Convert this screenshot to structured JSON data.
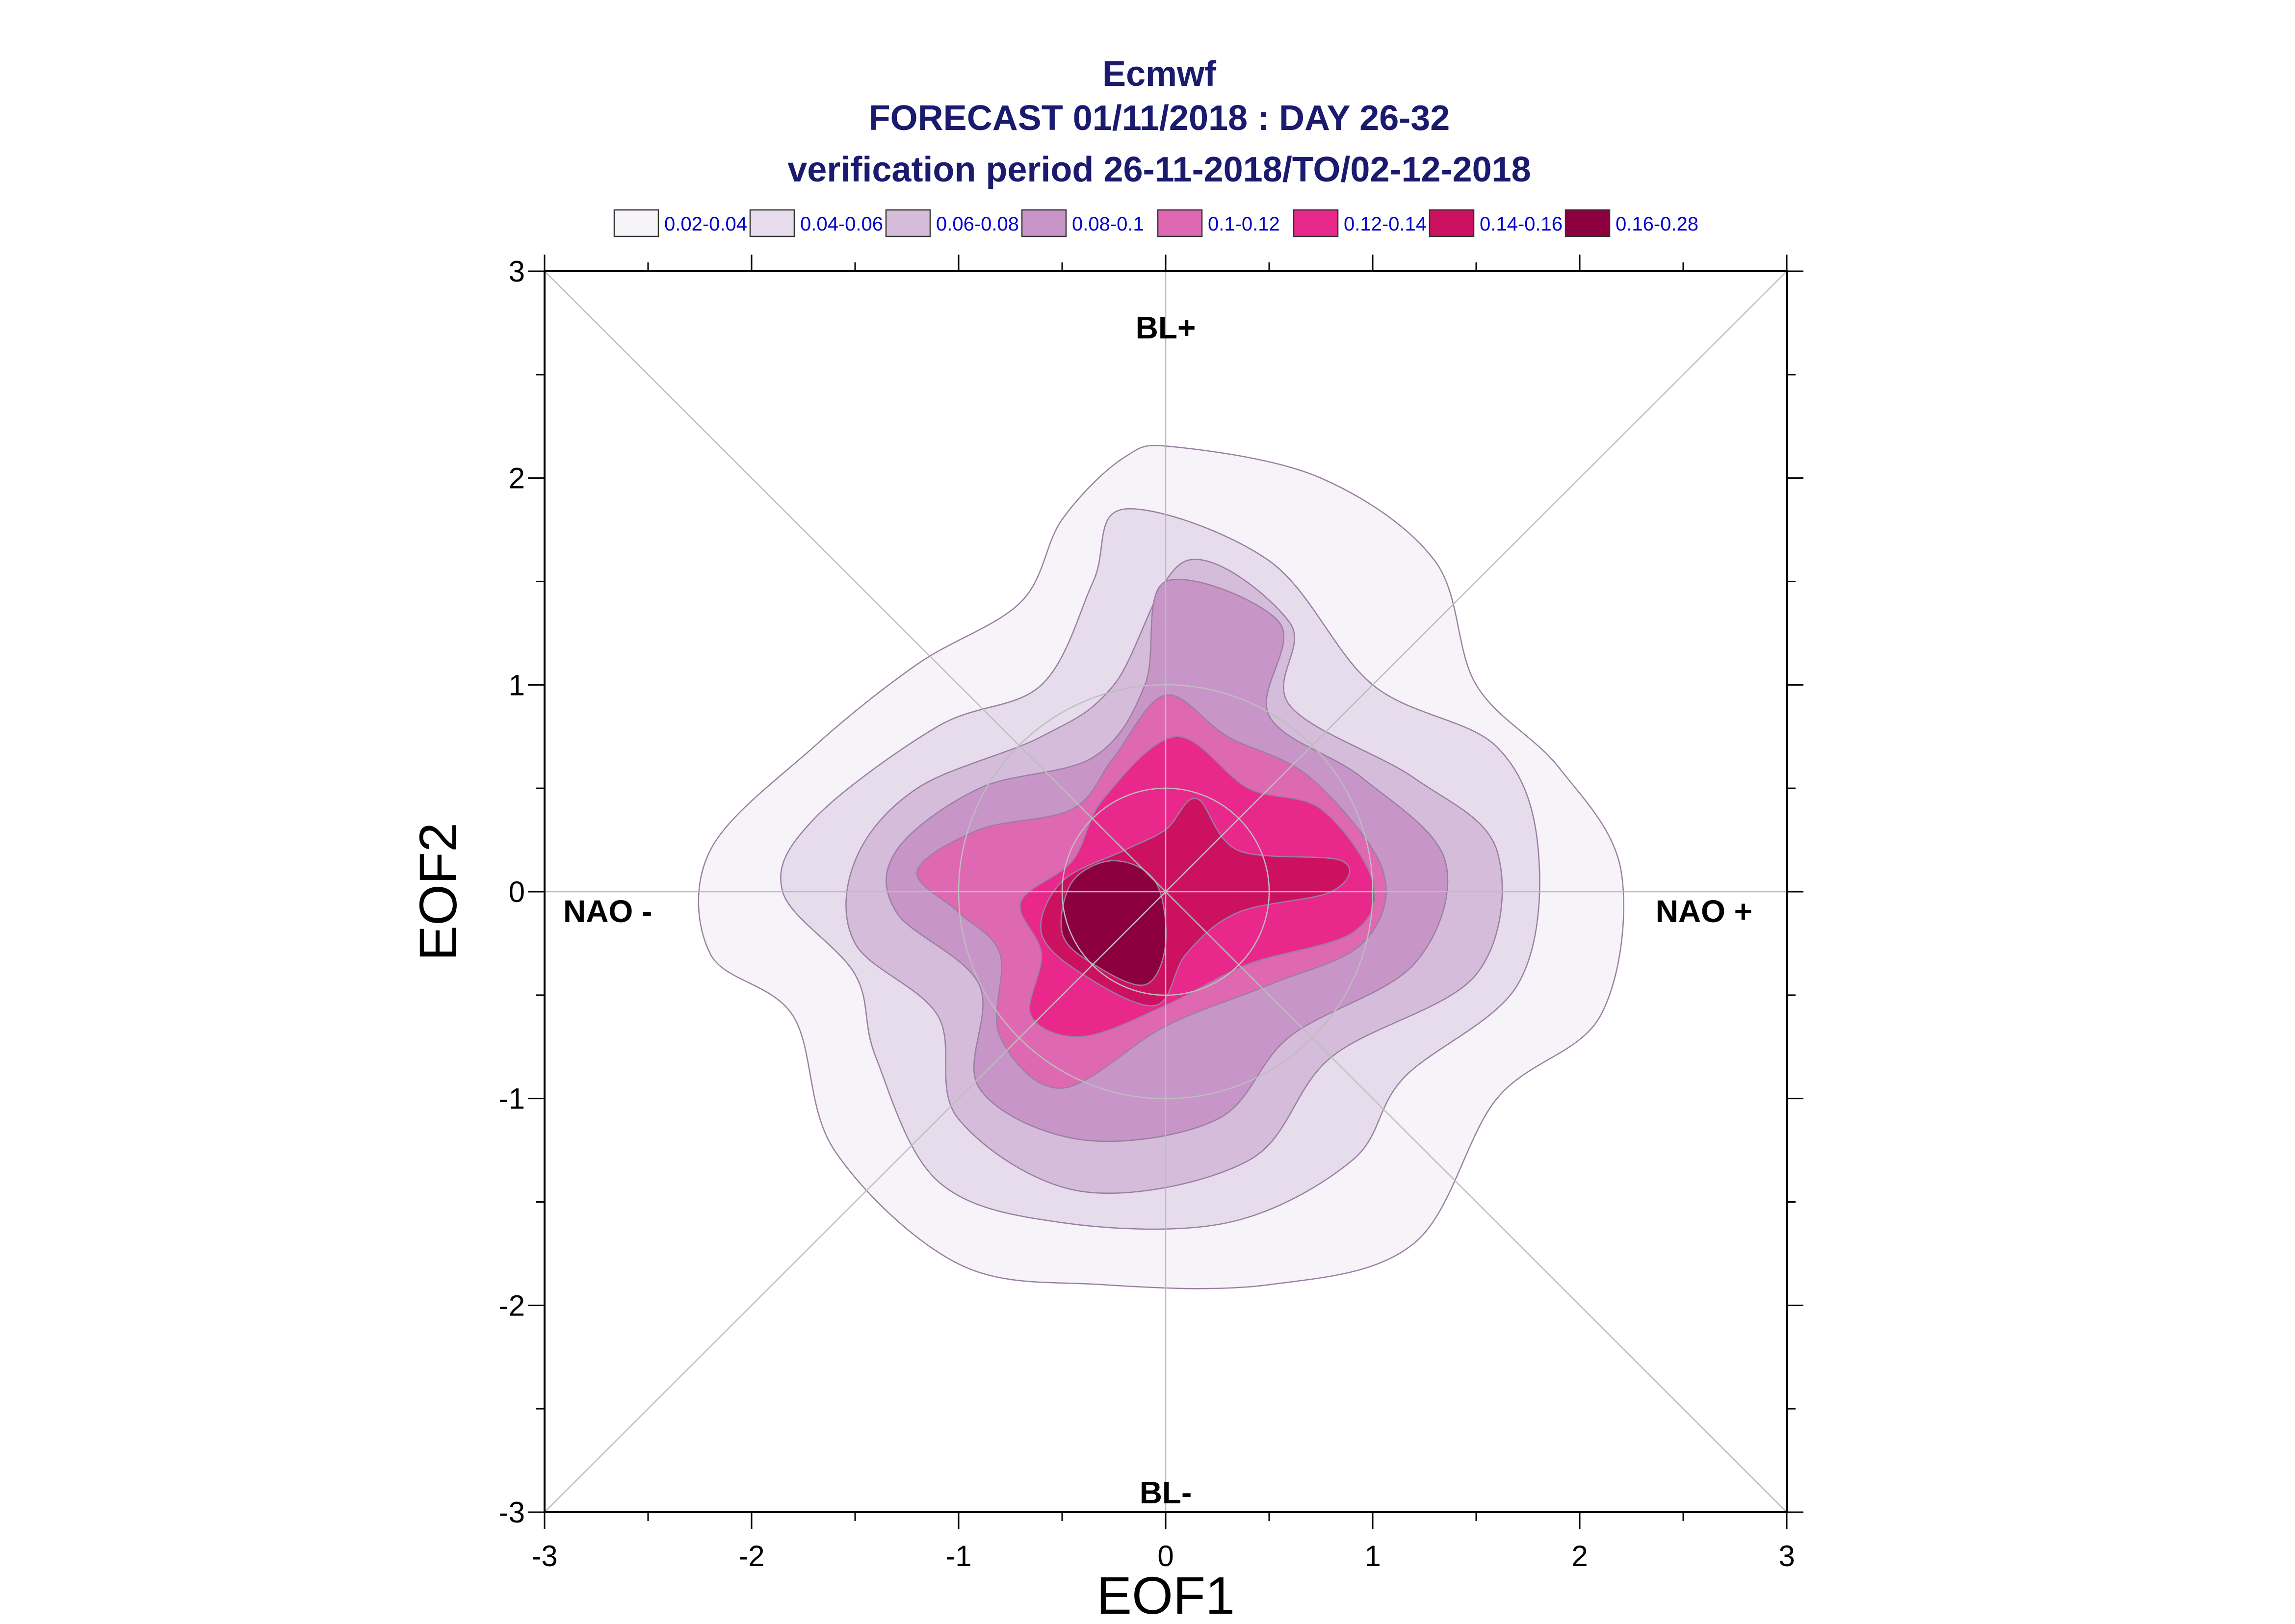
{
  "chart_data": {
    "type": "contour",
    "title": "Ecmwf",
    "subtitle_lines": [
      "FORECAST 01/11/2018 : DAY 26-32",
      "verification period 26-11-2018/TO/02-12-2018"
    ],
    "xlabel": "EOF1",
    "ylabel": "EOF2",
    "xlim": [
      -3,
      3
    ],
    "ylim": [
      -3,
      3
    ],
    "xticks": [
      "-3",
      "-2",
      "-1",
      "0",
      "1",
      "2",
      "3"
    ],
    "yticks": [
      "-3",
      "-2",
      "-1",
      "0",
      "1",
      "2",
      "3"
    ],
    "grid": false,
    "legend_position": "top",
    "legend": [
      {
        "label": "0.02-0.04",
        "color": "#f6f3f9"
      },
      {
        "label": "0.04-0.06",
        "color": "#e6dcec"
      },
      {
        "label": "0.06-0.08",
        "color": "#d4bcda"
      },
      {
        "label": "0.08-0.1",
        "color": "#c895c8"
      },
      {
        "label": "0.1-0.12",
        "color": "#df68b2"
      },
      {
        "label": "0.12-0.14",
        "color": "#e8288a"
      },
      {
        "label": "0.14-0.16",
        "color": "#cc1160"
      },
      {
        "label": "0.16-0.28",
        "color": "#8c0040"
      }
    ],
    "regime_labels": {
      "top": "BL+",
      "bottom": "BL-",
      "left": "NAO -",
      "right": "NAO +"
    },
    "reference_circles_radius": [
      0.5,
      1.0
    ],
    "contours": [
      {
        "level": "0.02-0.04",
        "points": [
          [
            0.05,
            2.15
          ],
          [
            0.75,
            2.0
          ],
          [
            1.3,
            1.6
          ],
          [
            1.5,
            1.0
          ],
          [
            1.9,
            0.6
          ],
          [
            2.2,
            0.1
          ],
          [
            2.1,
            -0.6
          ],
          [
            1.6,
            -1.0
          ],
          [
            1.2,
            -1.7
          ],
          [
            0.5,
            -1.9
          ],
          [
            -0.3,
            -1.9
          ],
          [
            -1.0,
            -1.8
          ],
          [
            -1.6,
            -1.25
          ],
          [
            -1.8,
            -0.6
          ],
          [
            -2.2,
            -0.3
          ],
          [
            -2.2,
            0.2
          ],
          [
            -1.7,
            0.7
          ],
          [
            -1.2,
            1.1
          ],
          [
            -0.7,
            1.4
          ],
          [
            -0.5,
            1.8
          ],
          [
            -0.2,
            2.1
          ]
        ]
      },
      {
        "level": "0.04-0.06",
        "points": [
          [
            -0.2,
            1.85
          ],
          [
            0.5,
            1.6
          ],
          [
            1.0,
            1.0
          ],
          [
            1.6,
            0.7
          ],
          [
            1.8,
            0.2
          ],
          [
            1.7,
            -0.45
          ],
          [
            1.15,
            -0.9
          ],
          [
            0.9,
            -1.3
          ],
          [
            0.3,
            -1.6
          ],
          [
            -0.5,
            -1.6
          ],
          [
            -1.1,
            -1.4
          ],
          [
            -1.4,
            -0.8
          ],
          [
            -1.5,
            -0.4
          ],
          [
            -1.85,
            0.0
          ],
          [
            -1.7,
            0.35
          ],
          [
            -1.1,
            0.8
          ],
          [
            -0.6,
            1.0
          ],
          [
            -0.35,
            1.5
          ]
        ]
      },
      {
        "level": "0.06-0.08",
        "points": [
          [
            0.1,
            1.6
          ],
          [
            0.6,
            1.3
          ],
          [
            0.6,
            0.9
          ],
          [
            1.2,
            0.55
          ],
          [
            1.6,
            0.2
          ],
          [
            1.5,
            -0.4
          ],
          [
            0.8,
            -0.8
          ],
          [
            0.4,
            -1.3
          ],
          [
            -0.4,
            -1.45
          ],
          [
            -1.0,
            -1.1
          ],
          [
            -1.1,
            -0.6
          ],
          [
            -1.5,
            -0.25
          ],
          [
            -1.5,
            0.15
          ],
          [
            -1.2,
            0.5
          ],
          [
            -0.6,
            0.75
          ],
          [
            -0.25,
            1.0
          ]
        ]
      },
      {
        "level": "0.08-0.1",
        "points": [
          [
            0.0,
            1.5
          ],
          [
            0.55,
            1.3
          ],
          [
            0.5,
            0.85
          ],
          [
            0.95,
            0.55
          ],
          [
            1.35,
            0.15
          ],
          [
            1.2,
            -0.35
          ],
          [
            0.6,
            -0.7
          ],
          [
            0.25,
            -1.1
          ],
          [
            -0.4,
            -1.2
          ],
          [
            -0.9,
            -0.95
          ],
          [
            -0.9,
            -0.45
          ],
          [
            -1.3,
            -0.1
          ],
          [
            -1.3,
            0.2
          ],
          [
            -0.9,
            0.5
          ],
          [
            -0.35,
            0.65
          ],
          [
            -0.1,
            1.0
          ]
        ]
      },
      {
        "level": "0.1-0.12",
        "points": [
          [
            0.0,
            0.95
          ],
          [
            0.3,
            0.75
          ],
          [
            0.7,
            0.55
          ],
          [
            1.05,
            0.1
          ],
          [
            0.95,
            -0.25
          ],
          [
            0.5,
            -0.45
          ],
          [
            0.0,
            -0.65
          ],
          [
            -0.5,
            -0.95
          ],
          [
            -0.8,
            -0.7
          ],
          [
            -0.8,
            -0.3
          ],
          [
            -1.0,
            -0.1
          ],
          [
            -1.2,
            0.1
          ],
          [
            -0.9,
            0.3
          ],
          [
            -0.45,
            0.4
          ],
          [
            -0.25,
            0.65
          ]
        ]
      },
      {
        "level": "0.12-0.14",
        "points": [
          [
            0.05,
            0.75
          ],
          [
            0.4,
            0.5
          ],
          [
            0.75,
            0.4
          ],
          [
            1.0,
            0.05
          ],
          [
            0.9,
            -0.2
          ],
          [
            0.4,
            -0.35
          ],
          [
            0.0,
            -0.55
          ],
          [
            -0.4,
            -0.7
          ],
          [
            -0.65,
            -0.6
          ],
          [
            -0.6,
            -0.3
          ],
          [
            -0.7,
            -0.05
          ],
          [
            -0.45,
            0.15
          ],
          [
            -0.3,
            0.45
          ]
        ]
      },
      {
        "level": "0.14-0.16",
        "points": [
          [
            0.15,
            0.45
          ],
          [
            0.35,
            0.2
          ],
          [
            0.85,
            0.15
          ],
          [
            0.8,
            0.0
          ],
          [
            0.35,
            -0.1
          ],
          [
            0.1,
            -0.3
          ],
          [
            -0.05,
            -0.55
          ],
          [
            -0.4,
            -0.4
          ],
          [
            -0.6,
            -0.2
          ],
          [
            -0.5,
            0.05
          ],
          [
            -0.2,
            0.2
          ],
          [
            0.0,
            0.3
          ]
        ]
      },
      {
        "level": "0.16-0.28",
        "points": [
          [
            -0.25,
            0.15
          ],
          [
            -0.05,
            0.05
          ],
          [
            0.0,
            -0.25
          ],
          [
            -0.1,
            -0.45
          ],
          [
            -0.35,
            -0.35
          ],
          [
            -0.5,
            -0.2
          ],
          [
            -0.45,
            0.05
          ]
        ]
      }
    ]
  }
}
